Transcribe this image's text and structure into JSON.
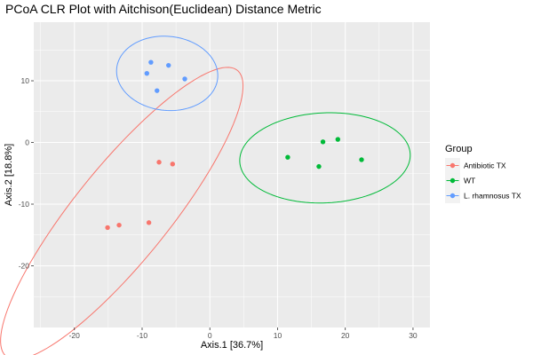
{
  "chart_data": {
    "type": "scatter",
    "title": "PCoA CLR Plot with Aitchison(Euclidean) Distance Metric",
    "xlabel": "Axis.1   [36.7%]",
    "ylabel": "Axis.2   [18.8%]",
    "xlim": [
      -26,
      32.5
    ],
    "ylim": [
      -30,
      19.5
    ],
    "xticks": [
      -20,
      -10,
      0,
      10,
      20,
      30
    ],
    "yticks": [
      -20,
      -10,
      0,
      10
    ],
    "xtick_labels": [
      "-20",
      "-10",
      "0",
      "10",
      "20",
      "30"
    ],
    "ytick_labels": [
      "-20",
      "-10",
      "0",
      "10"
    ],
    "grid": true,
    "legend": {
      "title": "Group",
      "position": "right"
    },
    "series": [
      {
        "name": "Antibiotic TX",
        "color": "#F8766D",
        "points": [
          {
            "x": -7.5,
            "y": -3.2
          },
          {
            "x": -5.5,
            "y": -3.5
          },
          {
            "x": -9.0,
            "y": -13.0
          },
          {
            "x": -13.4,
            "y": -13.4
          },
          {
            "x": -15.1,
            "y": -13.8
          }
        ],
        "ellipse": {
          "cx": -13.0,
          "cy": -11.5,
          "rx": 28.8,
          "ry": 7.2,
          "angle_deg": 54
        }
      },
      {
        "name": "WT",
        "color": "#00BA38",
        "points": [
          {
            "x": 11.5,
            "y": -2.4
          },
          {
            "x": 16.7,
            "y": 0.1
          },
          {
            "x": 18.9,
            "y": 0.5
          },
          {
            "x": 16.1,
            "y": -3.9
          },
          {
            "x": 22.4,
            "y": -2.8
          }
        ],
        "ellipse": {
          "cx": 17.0,
          "cy": -2.5,
          "rx": 12.6,
          "ry": 7.3,
          "angle_deg": 3
        }
      },
      {
        "name": "L. rhamnosus TX",
        "color": "#619CFF",
        "points": [
          {
            "x": -8.7,
            "y": 13.0
          },
          {
            "x": -6.1,
            "y": 12.5
          },
          {
            "x": -9.3,
            "y": 11.2
          },
          {
            "x": -3.7,
            "y": 10.3
          },
          {
            "x": -7.8,
            "y": 8.4
          }
        ],
        "ellipse": {
          "cx": -6.3,
          "cy": 11.2,
          "rx": 7.5,
          "ry": 6.0,
          "angle_deg": -8
        }
      }
    ]
  }
}
